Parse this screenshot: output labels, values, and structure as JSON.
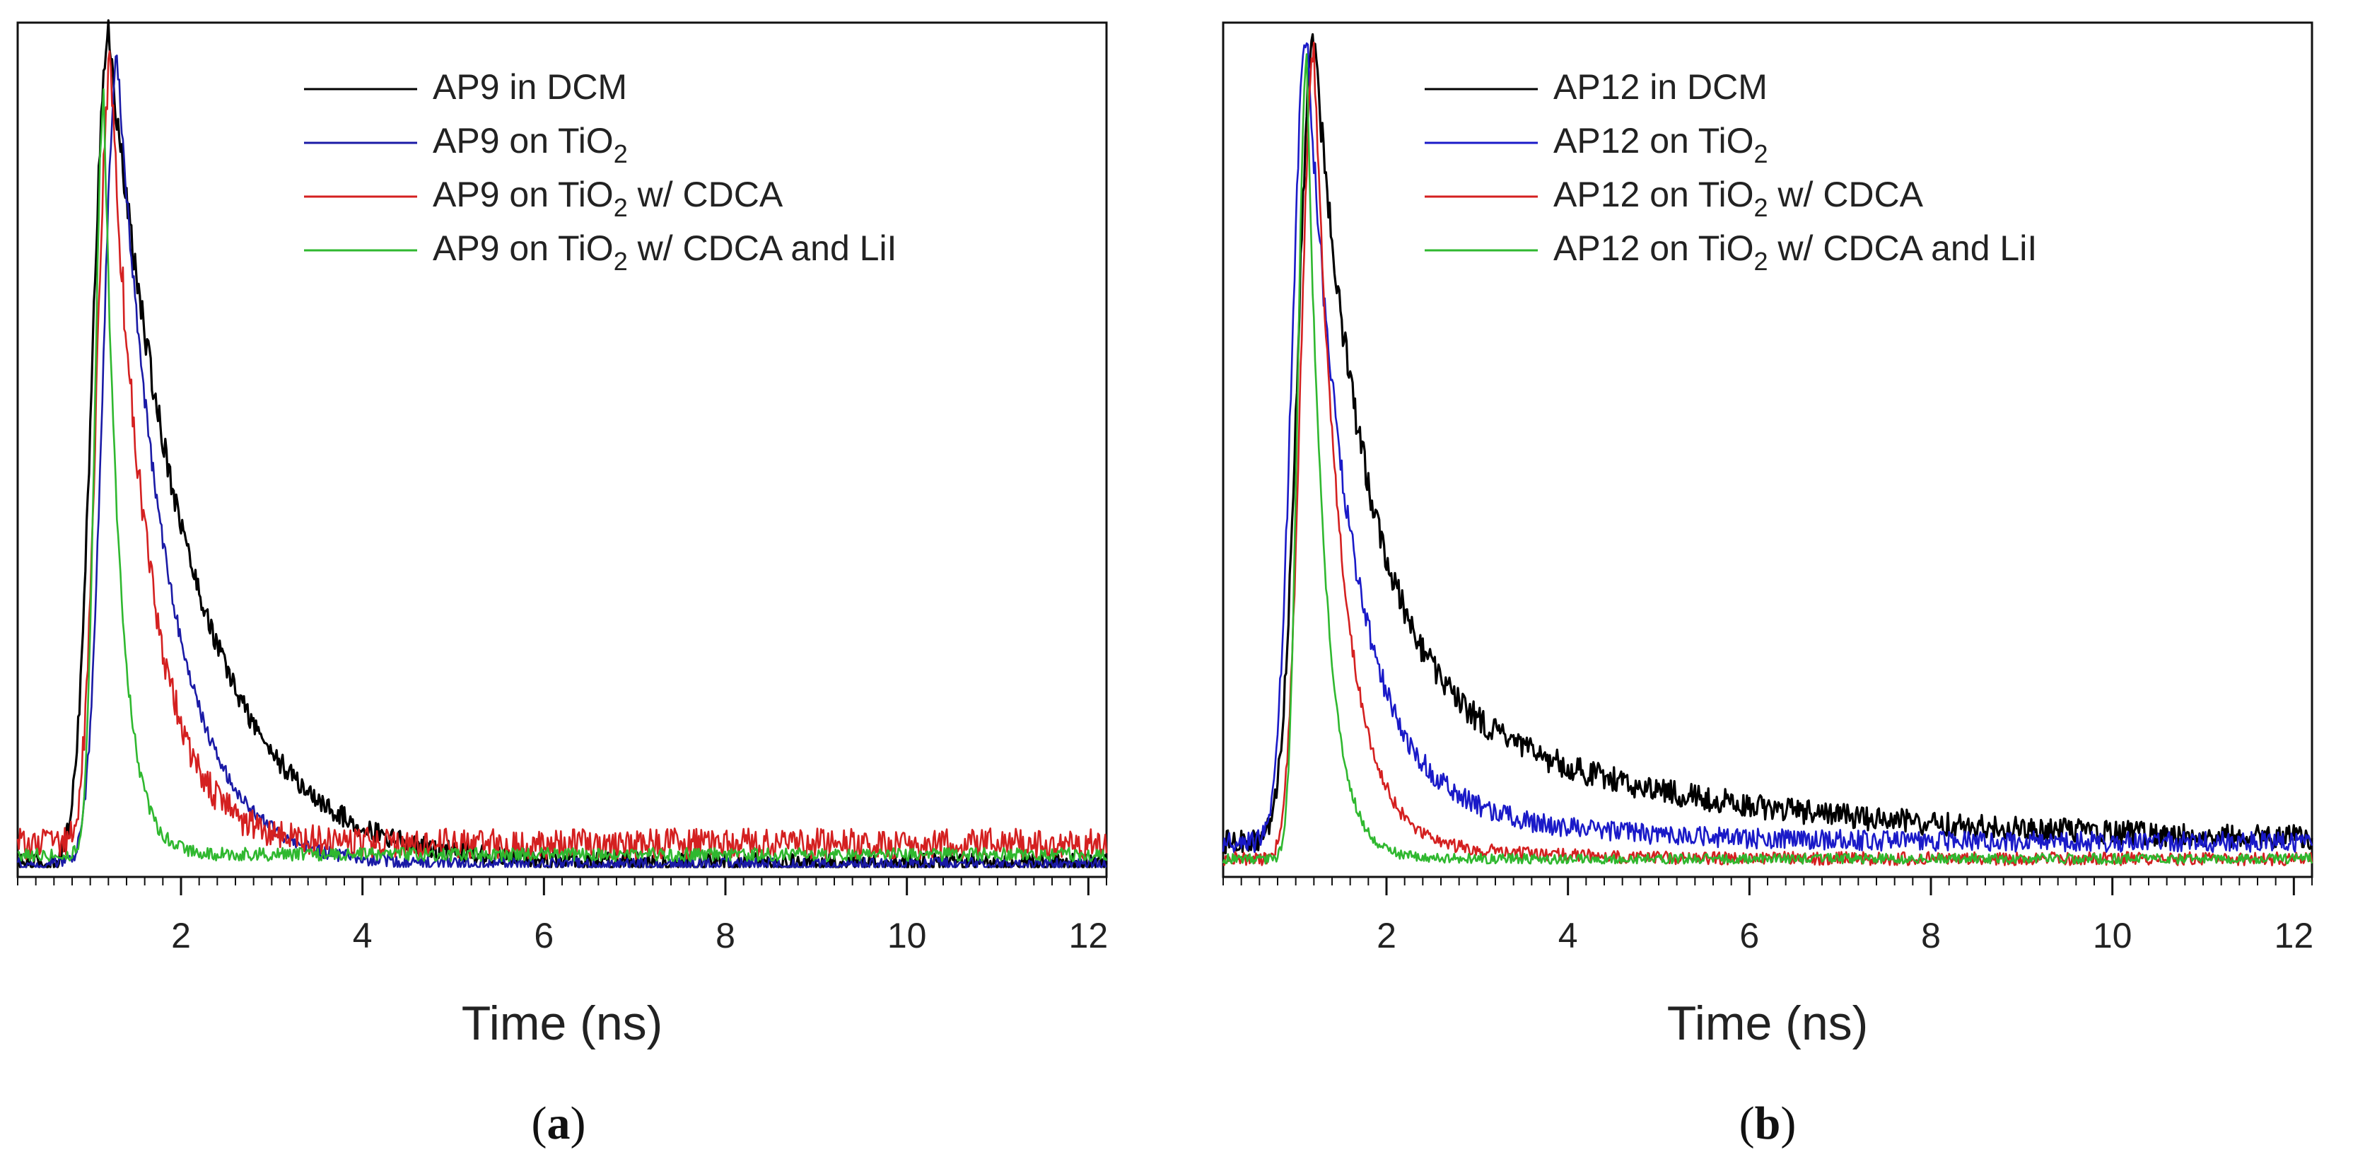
{
  "chart_data": [
    {
      "type": "line",
      "panel": "a",
      "caption_letter": "a",
      "xlabel": "Time (ns)",
      "ylabel": "",
      "xlim": [
        0.2,
        12.2
      ],
      "ylim": [
        0,
        1.0
      ],
      "x_ticks": [
        2,
        4,
        6,
        8,
        10,
        12
      ],
      "x_tick_labels": [
        "2",
        "4",
        "6",
        "8",
        "10",
        "12"
      ],
      "legend_position": "top-right",
      "series": [
        {
          "name": "AP9 in DCM",
          "color": "#000000",
          "legend": {
            "main": "AP9 in DCM",
            "sub": "",
            "after": ""
          },
          "onset": 0.6,
          "peak": 1.2,
          "peak_value": 1.0,
          "rise": 0.55,
          "tau": 0.9,
          "tail_amp": 0.0,
          "tail_tau": 4,
          "baseline": 0.004,
          "noise": 0.012
        },
        {
          "name": "AP9 on TiO2",
          "color": "#1a1aa6",
          "legend": {
            "main": "AP9 on TiO",
            "sub": "2",
            "after": ""
          },
          "onset": 0.65,
          "peak": 1.3,
          "peak_value": 0.97,
          "rise": 0.5,
          "tau": 0.55,
          "tail_amp": 0.0,
          "tail_tau": 4,
          "baseline": 0.003,
          "noise": 0.008
        },
        {
          "name": "AP9 on TiO2 w/ CDCA",
          "color": "#d42020",
          "legend": {
            "main": "AP9 on TiO",
            "sub": "2",
            "after": " w/ CDCA"
          },
          "onset": 0.7,
          "peak": 1.22,
          "peak_value": 0.96,
          "rise": 0.45,
          "tau": 0.42,
          "tail_amp": 0.0,
          "tail_tau": 4,
          "baseline": 0.028,
          "noise": 0.018
        },
        {
          "name": "AP9 on TiO2 w/ CDCA and LiI",
          "color": "#2fb82f",
          "legend": {
            "main": "AP9 on TiO",
            "sub": "2",
            "after": " w/ CDCA and LiI"
          },
          "onset": 0.8,
          "peak": 1.15,
          "peak_value": 0.93,
          "rise": 0.3,
          "tau": 0.18,
          "tail_amp": 0.0,
          "tail_tau": 4,
          "baseline": 0.015,
          "noise": 0.008
        }
      ]
    },
    {
      "type": "line",
      "panel": "b",
      "caption_letter": "b",
      "xlabel": "Time (ns)",
      "ylabel": "",
      "xlim": [
        0.2,
        12.2
      ],
      "ylim": [
        0,
        1.0
      ],
      "x_ticks": [
        2,
        4,
        6,
        8,
        10,
        12
      ],
      "x_tick_labels": [
        "2",
        "4",
        "6",
        "8",
        "10",
        "12"
      ],
      "legend_position": "top-right",
      "series": [
        {
          "name": "AP12 in DCM",
          "color": "#000000",
          "legend": {
            "main": "AP12 in DCM",
            "sub": "",
            "after": ""
          },
          "onset": 0.55,
          "peak": 1.2,
          "peak_value": 1.0,
          "rise": 0.55,
          "tau": 0.55,
          "tail_amp": 0.22,
          "tail_tau": 3.0,
          "baseline": 0.03,
          "noise": 0.014
        },
        {
          "name": "AP12 on TiO2",
          "color": "#1a1ac8",
          "legend": {
            "main": "AP12 on TiO",
            "sub": "2",
            "after": ""
          },
          "onset": 0.55,
          "peak": 1.12,
          "peak_value": 1.0,
          "rise": 0.5,
          "tau": 0.45,
          "tail_amp": 0.1,
          "tail_tau": 1.6,
          "baseline": 0.03,
          "noise": 0.012
        },
        {
          "name": "AP12 on TiO2 w/ CDCA",
          "color": "#d42020",
          "legend": {
            "main": "AP12 on TiO",
            "sub": "2",
            "after": " w/ CDCA"
          },
          "onset": 0.7,
          "peak": 1.2,
          "peak_value": 0.98,
          "rise": 0.45,
          "tau": 0.3,
          "tail_amp": 0.04,
          "tail_tau": 1.2,
          "baseline": 0.01,
          "noise": 0.008
        },
        {
          "name": "AP12 on TiO2 w/ CDCA and LiI",
          "color": "#2fb82f",
          "legend": {
            "main": "AP12 on TiO",
            "sub": "2",
            "after": " w/ CDCA and LiI"
          },
          "onset": 0.8,
          "peak": 1.12,
          "peak_value": 0.97,
          "rise": 0.3,
          "tau": 0.2,
          "tail_amp": 0.0,
          "tail_tau": 2,
          "baseline": 0.01,
          "noise": 0.006
        }
      ]
    }
  ]
}
